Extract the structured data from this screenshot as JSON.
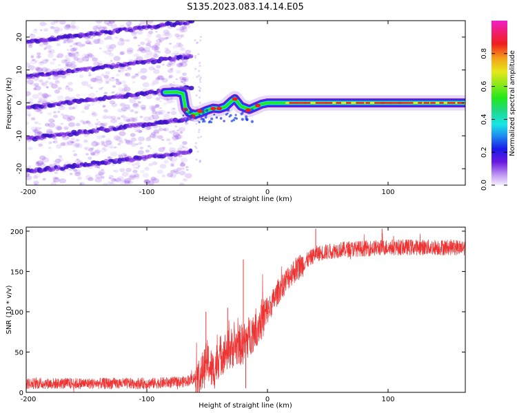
{
  "title": "S135.2023.083.14.14.E05",
  "chart_data": [
    {
      "type": "heatmap",
      "xlabel": "Height of straight line (km)",
      "ylabel": "Frequency (Hz)",
      "xlim": [
        -200,
        164
      ],
      "ylim": [
        -25,
        25
      ],
      "xticks": [
        -200,
        -100,
        0,
        100
      ],
      "xtick_labels": [
        "-200",
        "-100",
        "0",
        "100"
      ],
      "yticks": [
        -20,
        -10,
        0,
        10,
        20
      ],
      "ytick_labels": [
        "-20",
        "-10",
        "0",
        "10",
        "20"
      ],
      "main_signal_trace": [
        {
          "x": -85,
          "f": 3.2
        },
        {
          "x": -75,
          "f": 3.3
        },
        {
          "x": -70,
          "f": 2.8
        },
        {
          "x": -68,
          "f": -1.5
        },
        {
          "x": -65,
          "f": -3.0
        },
        {
          "x": -60,
          "f": -3.5
        },
        {
          "x": -55,
          "f": -3.0
        },
        {
          "x": -50,
          "f": -2.2
        },
        {
          "x": -45,
          "f": -1.6
        },
        {
          "x": -40,
          "f": -1.8
        },
        {
          "x": -35,
          "f": -1.2
        },
        {
          "x": -30,
          "f": 0.5
        },
        {
          "x": -27,
          "f": 1.3
        },
        {
          "x": -22,
          "f": -1.0
        },
        {
          "x": -15,
          "f": -2.0
        },
        {
          "x": -10,
          "f": -1.2
        },
        {
          "x": -5,
          "f": -0.4
        },
        {
          "x": 0,
          "f": 0
        },
        {
          "x": 20,
          "f": 0
        },
        {
          "x": 60,
          "f": 0
        },
        {
          "x": 100,
          "f": 0
        },
        {
          "x": 164,
          "f": 0
        }
      ],
      "harmonic_bands_left_start_f": [
        18.5,
        8,
        -1.5,
        -11,
        -21
      ],
      "colorbar": {
        "label": "Normalized spectral amplitude",
        "range": [
          0,
          1
        ],
        "ticks": [
          0.0,
          0.2,
          0.4,
          0.6,
          0.8
        ],
        "tick_labels": [
          "0.0",
          "0.2",
          "0.4",
          "0.6",
          "0.8"
        ],
        "colormap": "gist_ncar-like (white-purple-blue-cyan-green-yellow-red-magenta)"
      }
    },
    {
      "type": "line",
      "xlabel": "Height of straight line (km)",
      "ylabel": "SNR (10 * v/v)",
      "xlim": [
        -200,
        164
      ],
      "ylim": [
        0,
        205
      ],
      "xticks": [
        -200,
        -100,
        0,
        100
      ],
      "xtick_labels": [
        "-200",
        "-100",
        "0",
        "100"
      ],
      "yticks": [
        0,
        50,
        100,
        150,
        200
      ],
      "ytick_labels": [
        "0",
        "50",
        "100",
        "150",
        "200"
      ],
      "color": "#ee3333",
      "trend": [
        {
          "x": -200,
          "y": 11
        },
        {
          "x": -100,
          "y": 11
        },
        {
          "x": -70,
          "y": 13
        },
        {
          "x": -55,
          "y": 20
        },
        {
          "x": -50,
          "y": 40
        },
        {
          "x": -45,
          "y": 25
        },
        {
          "x": -40,
          "y": 45
        },
        {
          "x": -30,
          "y": 55
        },
        {
          "x": -20,
          "y": 60
        },
        {
          "x": -10,
          "y": 80
        },
        {
          "x": 0,
          "y": 100
        },
        {
          "x": 10,
          "y": 128
        },
        {
          "x": 20,
          "y": 148
        },
        {
          "x": 30,
          "y": 160
        },
        {
          "x": 40,
          "y": 172
        },
        {
          "x": 60,
          "y": 177
        },
        {
          "x": 100,
          "y": 180
        },
        {
          "x": 164,
          "y": 180
        }
      ],
      "noise_amplitude": 9,
      "spikes": [
        {
          "x": -51,
          "y": 100
        },
        {
          "x": -33,
          "y": 105
        },
        {
          "x": -20,
          "y": 165
        },
        {
          "x": -18,
          "y": 5
        },
        {
          "x": 40,
          "y": 203
        },
        {
          "x": 95,
          "y": 203
        }
      ]
    }
  ]
}
